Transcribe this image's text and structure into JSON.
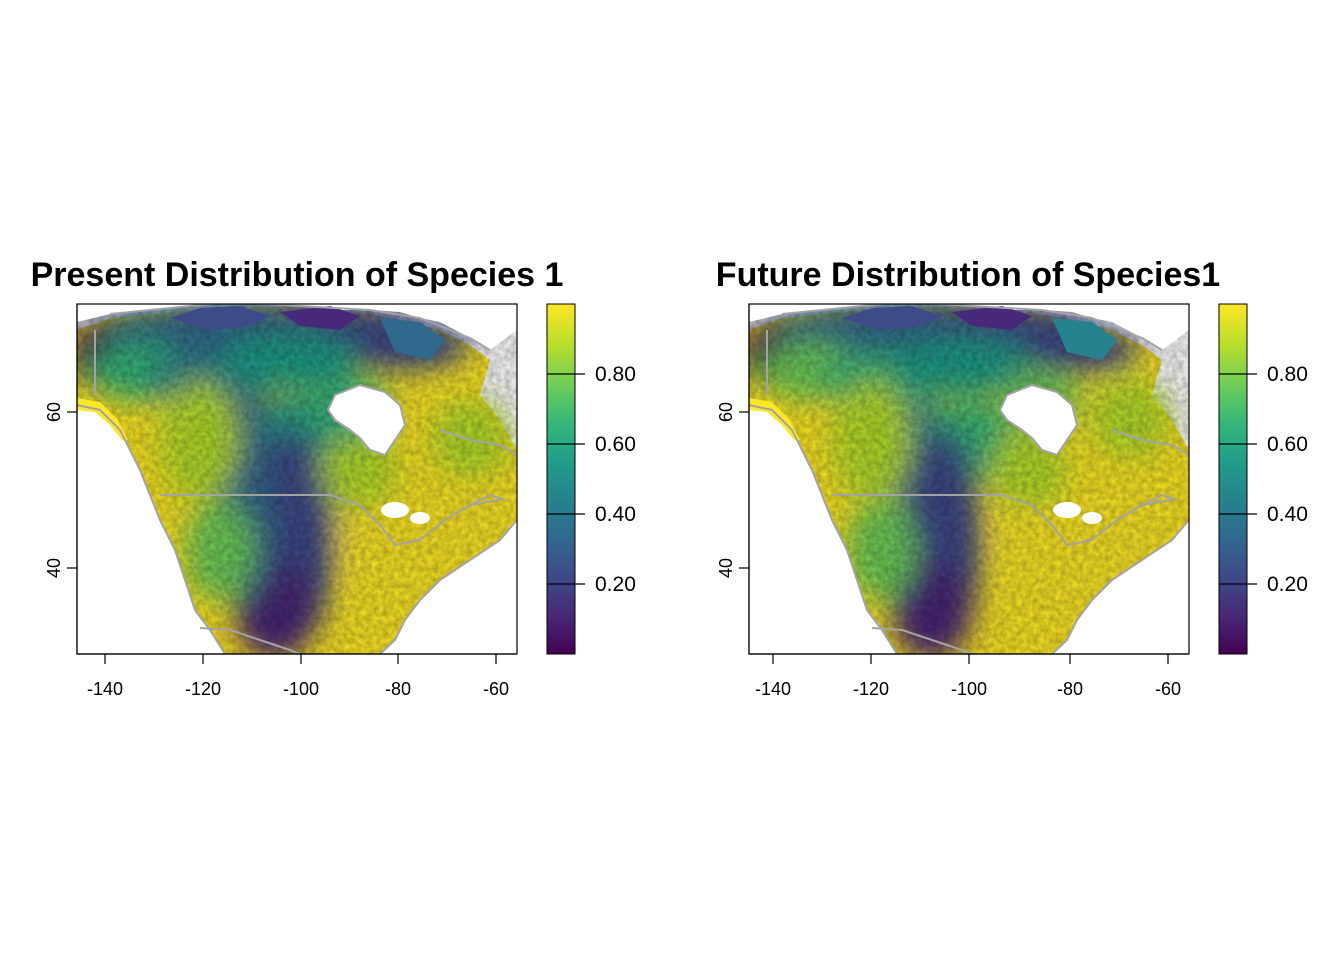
{
  "panels": [
    {
      "title": "Present Distribution of Species 1",
      "x_ticks": [
        "-140",
        "-120",
        "-100",
        "-80",
        "-60"
      ],
      "y_ticks": [
        "40",
        "60"
      ],
      "colorbar_ticks": [
        "0.20",
        "0.40",
        "0.60",
        "0.80"
      ]
    },
    {
      "title": "Future Distribution of Species1",
      "x_ticks": [
        "-140",
        "-120",
        "-100",
        "-80",
        "-60"
      ],
      "y_ticks": [
        "40",
        "60"
      ],
      "colorbar_ticks": [
        "0.20",
        "0.40",
        "0.60",
        "0.80"
      ]
    }
  ],
  "colors": {
    "scale": [
      "#440154",
      "#482878",
      "#3e4a89",
      "#31688e",
      "#26828e",
      "#1f9e89",
      "#35b779",
      "#6ece58",
      "#b5de2b",
      "#fde725"
    ],
    "borders": "#a3a3a3"
  }
}
